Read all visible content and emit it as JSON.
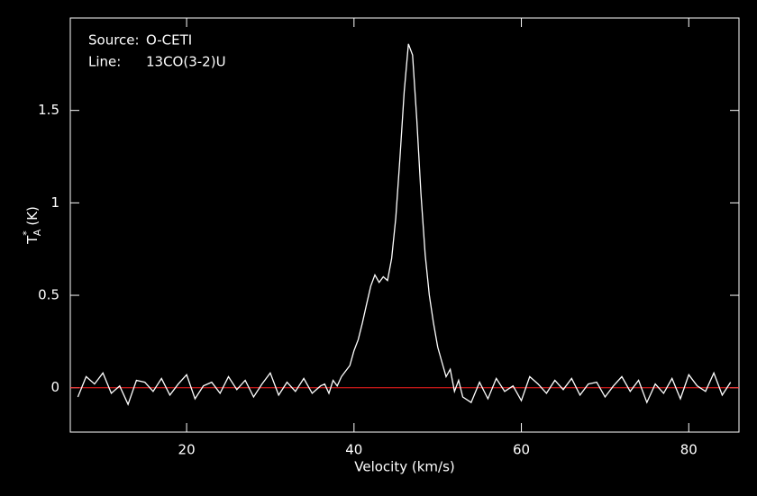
{
  "chart_data": {
    "type": "line",
    "annotations": [
      {
        "label": "Source:",
        "text": "O-CETI"
      },
      {
        "label": "Line:",
        "text": "13CO(3-2)U"
      }
    ],
    "xlabel": "Velocity (km/s)",
    "ylabel": {
      "symbol": "T",
      "superscript": "*",
      "subscript": "A",
      "unit": "(K)"
    },
    "xlim": [
      6.1,
      86.0
    ],
    "ylim": [
      -0.24,
      2.0
    ],
    "xticks": [
      20,
      40,
      60,
      80
    ],
    "yticks": [
      0,
      0.5,
      1,
      1.5
    ],
    "baseline": 0,
    "baseline_color": "#ff2020",
    "series": [
      {
        "color": "#ffffff",
        "x": [
          7,
          8,
          9,
          10,
          11,
          12,
          13,
          14,
          15,
          16,
          17,
          18,
          19,
          20,
          21,
          22,
          23,
          24,
          25,
          26,
          27,
          28,
          29,
          30,
          31,
          32,
          33,
          34,
          35,
          36,
          36.5,
          37,
          37.5,
          38,
          38.5,
          39,
          39.5,
          40,
          40.5,
          41,
          41.5,
          42,
          42.5,
          43,
          43.5,
          44,
          44.5,
          45,
          45.5,
          46,
          46.5,
          47,
          47.5,
          48,
          48.5,
          49,
          49.5,
          50,
          50.5,
          51,
          51.5,
          52,
          52.5,
          53,
          54,
          55,
          56,
          57,
          58,
          59,
          60,
          61,
          62,
          63,
          64,
          65,
          66,
          67,
          68,
          69,
          70,
          71,
          72,
          73,
          74,
          75,
          76,
          77,
          78,
          79,
          80,
          81,
          82,
          83,
          84,
          85
        ],
        "values": [
          -0.05,
          0.06,
          0.02,
          0.08,
          -0.03,
          0.01,
          -0.09,
          0.04,
          0.03,
          -0.02,
          0.05,
          -0.04,
          0.02,
          0.07,
          -0.06,
          0.01,
          0.03,
          -0.03,
          0.06,
          -0.01,
          0.04,
          -0.05,
          0.02,
          0.08,
          -0.04,
          0.03,
          -0.02,
          0.05,
          -0.03,
          0.01,
          0.02,
          -0.03,
          0.04,
          0.01,
          0.06,
          0.09,
          0.12,
          0.2,
          0.26,
          0.35,
          0.45,
          0.55,
          0.61,
          0.57,
          0.6,
          0.58,
          0.7,
          0.92,
          1.25,
          1.6,
          1.86,
          1.8,
          1.45,
          1.05,
          0.72,
          0.5,
          0.35,
          0.22,
          0.14,
          0.06,
          0.1,
          -0.02,
          0.04,
          -0.05,
          -0.08,
          0.03,
          -0.06,
          0.05,
          -0.02,
          0.01,
          -0.07,
          0.06,
          0.02,
          -0.03,
          0.04,
          -0.01,
          0.05,
          -0.04,
          0.02,
          0.03,
          -0.05,
          0.01,
          0.06,
          -0.02,
          0.04,
          -0.08,
          0.02,
          -0.03,
          0.05,
          -0.06,
          0.07,
          0.01,
          -0.02,
          0.08,
          -0.04,
          0.03
        ]
      }
    ]
  }
}
